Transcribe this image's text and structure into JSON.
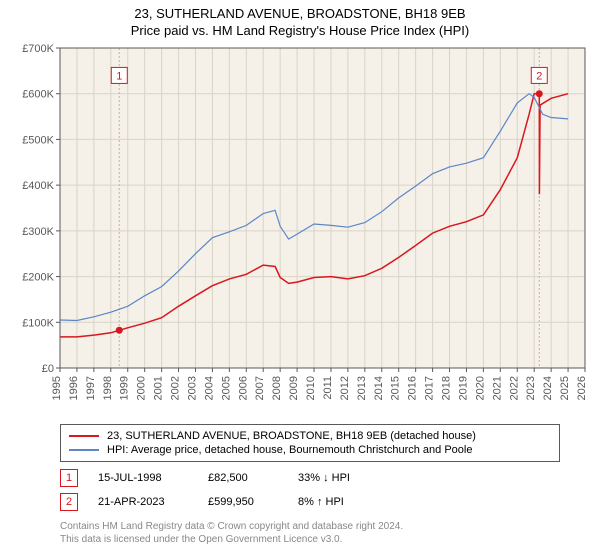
{
  "title_line1": "23, SUTHERLAND AVENUE, BROADSTONE, BH18 9EB",
  "title_line2": "Price paid vs. HM Land Registry's House Price Index (HPI)",
  "chart": {
    "type": "line",
    "background_color": "#f5f0e8",
    "grid_color": "#d9d4c8",
    "axis_color": "#595959",
    "text_color": "#595959",
    "ylim": [
      0,
      700000
    ],
    "ytick_step": 100000,
    "ytick_labels": [
      "£0",
      "£100K",
      "£200K",
      "£300K",
      "£400K",
      "£500K",
      "£600K",
      "£700K"
    ],
    "xlim": [
      1995,
      2026
    ],
    "xtick_step": 1,
    "xtick_labels": [
      "1995",
      "1996",
      "1997",
      "1998",
      "1999",
      "2000",
      "2001",
      "2002",
      "2003",
      "2004",
      "2005",
      "2006",
      "2007",
      "2008",
      "2009",
      "2010",
      "2011",
      "2012",
      "2013",
      "2014",
      "2015",
      "2016",
      "2017",
      "2018",
      "2019",
      "2020",
      "2021",
      "2022",
      "2023",
      "2024",
      "2025",
      "2026"
    ],
    "series": [
      {
        "name": "price_paid",
        "color": "#d9171e",
        "width": 1.5,
        "points": [
          [
            1995,
            68000
          ],
          [
            1996,
            68000
          ],
          [
            1997,
            72000
          ],
          [
            1998,
            77000
          ],
          [
            1998.5,
            82500
          ],
          [
            1999,
            88000
          ],
          [
            2000,
            98000
          ],
          [
            2001,
            110000
          ],
          [
            2002,
            135000
          ],
          [
            2003,
            158000
          ],
          [
            2004,
            180000
          ],
          [
            2005,
            195000
          ],
          [
            2006,
            205000
          ],
          [
            2007,
            225000
          ],
          [
            2007.7,
            222000
          ],
          [
            2008,
            198000
          ],
          [
            2008.5,
            185000
          ],
          [
            2009,
            188000
          ],
          [
            2010,
            198000
          ],
          [
            2011,
            200000
          ],
          [
            2012,
            195000
          ],
          [
            2013,
            202000
          ],
          [
            2014,
            218000
          ],
          [
            2015,
            242000
          ],
          [
            2016,
            268000
          ],
          [
            2017,
            295000
          ],
          [
            2018,
            310000
          ],
          [
            2019,
            320000
          ],
          [
            2020,
            335000
          ],
          [
            2021,
            390000
          ],
          [
            2022,
            460000
          ],
          [
            2022.7,
            555000
          ],
          [
            2023,
            600000
          ],
          [
            2023.3,
            599950
          ],
          [
            2023.31,
            380000
          ],
          [
            2023.35,
            575000
          ],
          [
            2024,
            590000
          ],
          [
            2025,
            600000
          ]
        ]
      },
      {
        "name": "hpi",
        "color": "#5b87c7",
        "width": 1.2,
        "points": [
          [
            1995,
            105000
          ],
          [
            1996,
            104000
          ],
          [
            1997,
            112000
          ],
          [
            1998,
            122000
          ],
          [
            1999,
            135000
          ],
          [
            2000,
            158000
          ],
          [
            2001,
            178000
          ],
          [
            2002,
            212000
          ],
          [
            2003,
            250000
          ],
          [
            2004,
            285000
          ],
          [
            2005,
            298000
          ],
          [
            2006,
            312000
          ],
          [
            2007,
            338000
          ],
          [
            2007.7,
            345000
          ],
          [
            2008,
            310000
          ],
          [
            2008.5,
            282000
          ],
          [
            2009,
            293000
          ],
          [
            2010,
            315000
          ],
          [
            2011,
            312000
          ],
          [
            2012,
            308000
          ],
          [
            2013,
            318000
          ],
          [
            2014,
            342000
          ],
          [
            2015,
            372000
          ],
          [
            2016,
            398000
          ],
          [
            2017,
            425000
          ],
          [
            2018,
            440000
          ],
          [
            2019,
            448000
          ],
          [
            2020,
            460000
          ],
          [
            2021,
            518000
          ],
          [
            2022,
            580000
          ],
          [
            2022.7,
            600000
          ],
          [
            2023,
            592000
          ],
          [
            2023.5,
            555000
          ],
          [
            2024,
            548000
          ],
          [
            2025,
            545000
          ]
        ]
      }
    ],
    "markers": [
      {
        "label": "1",
        "x": 1998.5,
        "y": 82500,
        "line_color": "#e0a5a7",
        "badge_y": 640000
      },
      {
        "label": "2",
        "x": 2023.3,
        "y": 599950,
        "line_color": "#e0a5a7",
        "badge_y": 640000
      }
    ]
  },
  "legend": [
    {
      "color": "#d9171e",
      "label": "23, SUTHERLAND AVENUE, BROADSTONE, BH18 9EB (detached house)"
    },
    {
      "color": "#5b87c7",
      "label": "HPI: Average price, detached house, Bournemouth Christchurch and Poole"
    }
  ],
  "sale_markers": [
    {
      "num": "1",
      "date": "15-JUL-1998",
      "price": "£82,500",
      "pct": "33% ↓ HPI"
    },
    {
      "num": "2",
      "date": "21-APR-2023",
      "price": "£599,950",
      "pct": "8% ↑ HPI"
    }
  ],
  "footer_line1": "Contains HM Land Registry data © Crown copyright and database right 2024.",
  "footer_line2": "This data is licensed under the Open Government Licence v3.0."
}
